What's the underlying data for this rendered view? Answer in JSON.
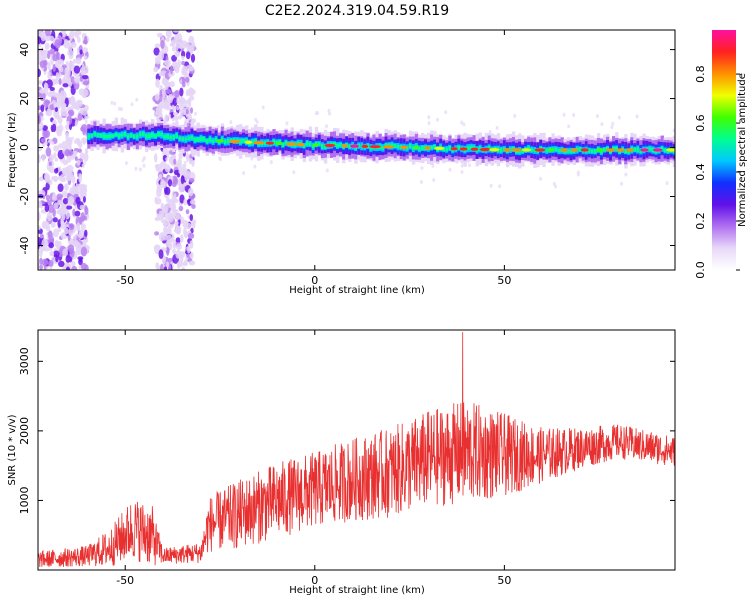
{
  "title": "C2E2.2024.319.04.59.R19",
  "chart_data": [
    {
      "type": "heatmap",
      "xlabel": "Height of straight line (km)",
      "ylabel": "Frequency (Hz)",
      "xlim": [
        -73,
        95
      ],
      "ylim": [
        -50,
        48
      ],
      "xticks": [
        -50,
        0,
        50
      ],
      "yticks": [
        -40,
        -20,
        0,
        20,
        40
      ],
      "colorbar": {
        "label": "Normalized spectral amplitude",
        "range": [
          0,
          0.98
        ],
        "ticks": [
          "0.0",
          "0.2",
          "0.4",
          "0.6",
          "0.8"
        ],
        "colormap": [
          "#ffffff",
          "#e8d8f8",
          "#b070f0",
          "#6010e8",
          "#1030ff",
          "#00c8ff",
          "#00ff90",
          "#40ff00",
          "#f0ff00",
          "#ff9000",
          "#ff2020",
          "#ff10a0"
        ]
      },
      "ridge": {
        "description_points": [
          {
            "x": -60,
            "freq": 5
          },
          {
            "x": -40,
            "freq": 5
          },
          {
            "x": -30,
            "freq": 3
          },
          {
            "x": 0,
            "freq": 1
          },
          {
            "x": 25,
            "freq": 0
          },
          {
            "x": 50,
            "freq": -1
          },
          {
            "x": 95,
            "freq": -1
          }
        ],
        "noise_regions_x": [
          [
            -73,
            -60
          ],
          [
            -42,
            -32
          ]
        ]
      }
    },
    {
      "type": "line",
      "xlabel": "Height of straight line (km)",
      "ylabel": "SNR (10 * v/v)",
      "xlim": [
        -73,
        95
      ],
      "ylim": [
        0,
        3450
      ],
      "xticks": [
        -50,
        0,
        50
      ],
      "yticks": [
        1000,
        2000,
        3000
      ],
      "color": "#e83030",
      "envelope": [
        {
          "x": -73,
          "mean": 150,
          "spread": 120
        },
        {
          "x": -60,
          "mean": 200,
          "spread": 150
        },
        {
          "x": -54,
          "mean": 320,
          "spread": 280
        },
        {
          "x": -48,
          "mean": 600,
          "spread": 450
        },
        {
          "x": -43,
          "mean": 500,
          "spread": 450
        },
        {
          "x": -40,
          "mean": 200,
          "spread": 120
        },
        {
          "x": -30,
          "mean": 250,
          "spread": 150
        },
        {
          "x": -28,
          "mean": 650,
          "spread": 400
        },
        {
          "x": -20,
          "mean": 800,
          "spread": 500
        },
        {
          "x": -10,
          "mean": 1000,
          "spread": 550
        },
        {
          "x": 0,
          "mean": 1150,
          "spread": 550
        },
        {
          "x": 10,
          "mean": 1300,
          "spread": 600
        },
        {
          "x": 20,
          "mean": 1400,
          "spread": 650
        },
        {
          "x": 30,
          "mean": 1600,
          "spread": 700
        },
        {
          "x": 40,
          "mean": 1700,
          "spread": 750
        },
        {
          "x": 50,
          "mean": 1650,
          "spread": 600
        },
        {
          "x": 60,
          "mean": 1650,
          "spread": 400
        },
        {
          "x": 70,
          "mean": 1750,
          "spread": 300
        },
        {
          "x": 80,
          "mean": 1850,
          "spread": 250
        },
        {
          "x": 95,
          "mean": 1700,
          "spread": 220
        }
      ],
      "peak": {
        "x": 39,
        "y": 3420
      }
    }
  ]
}
